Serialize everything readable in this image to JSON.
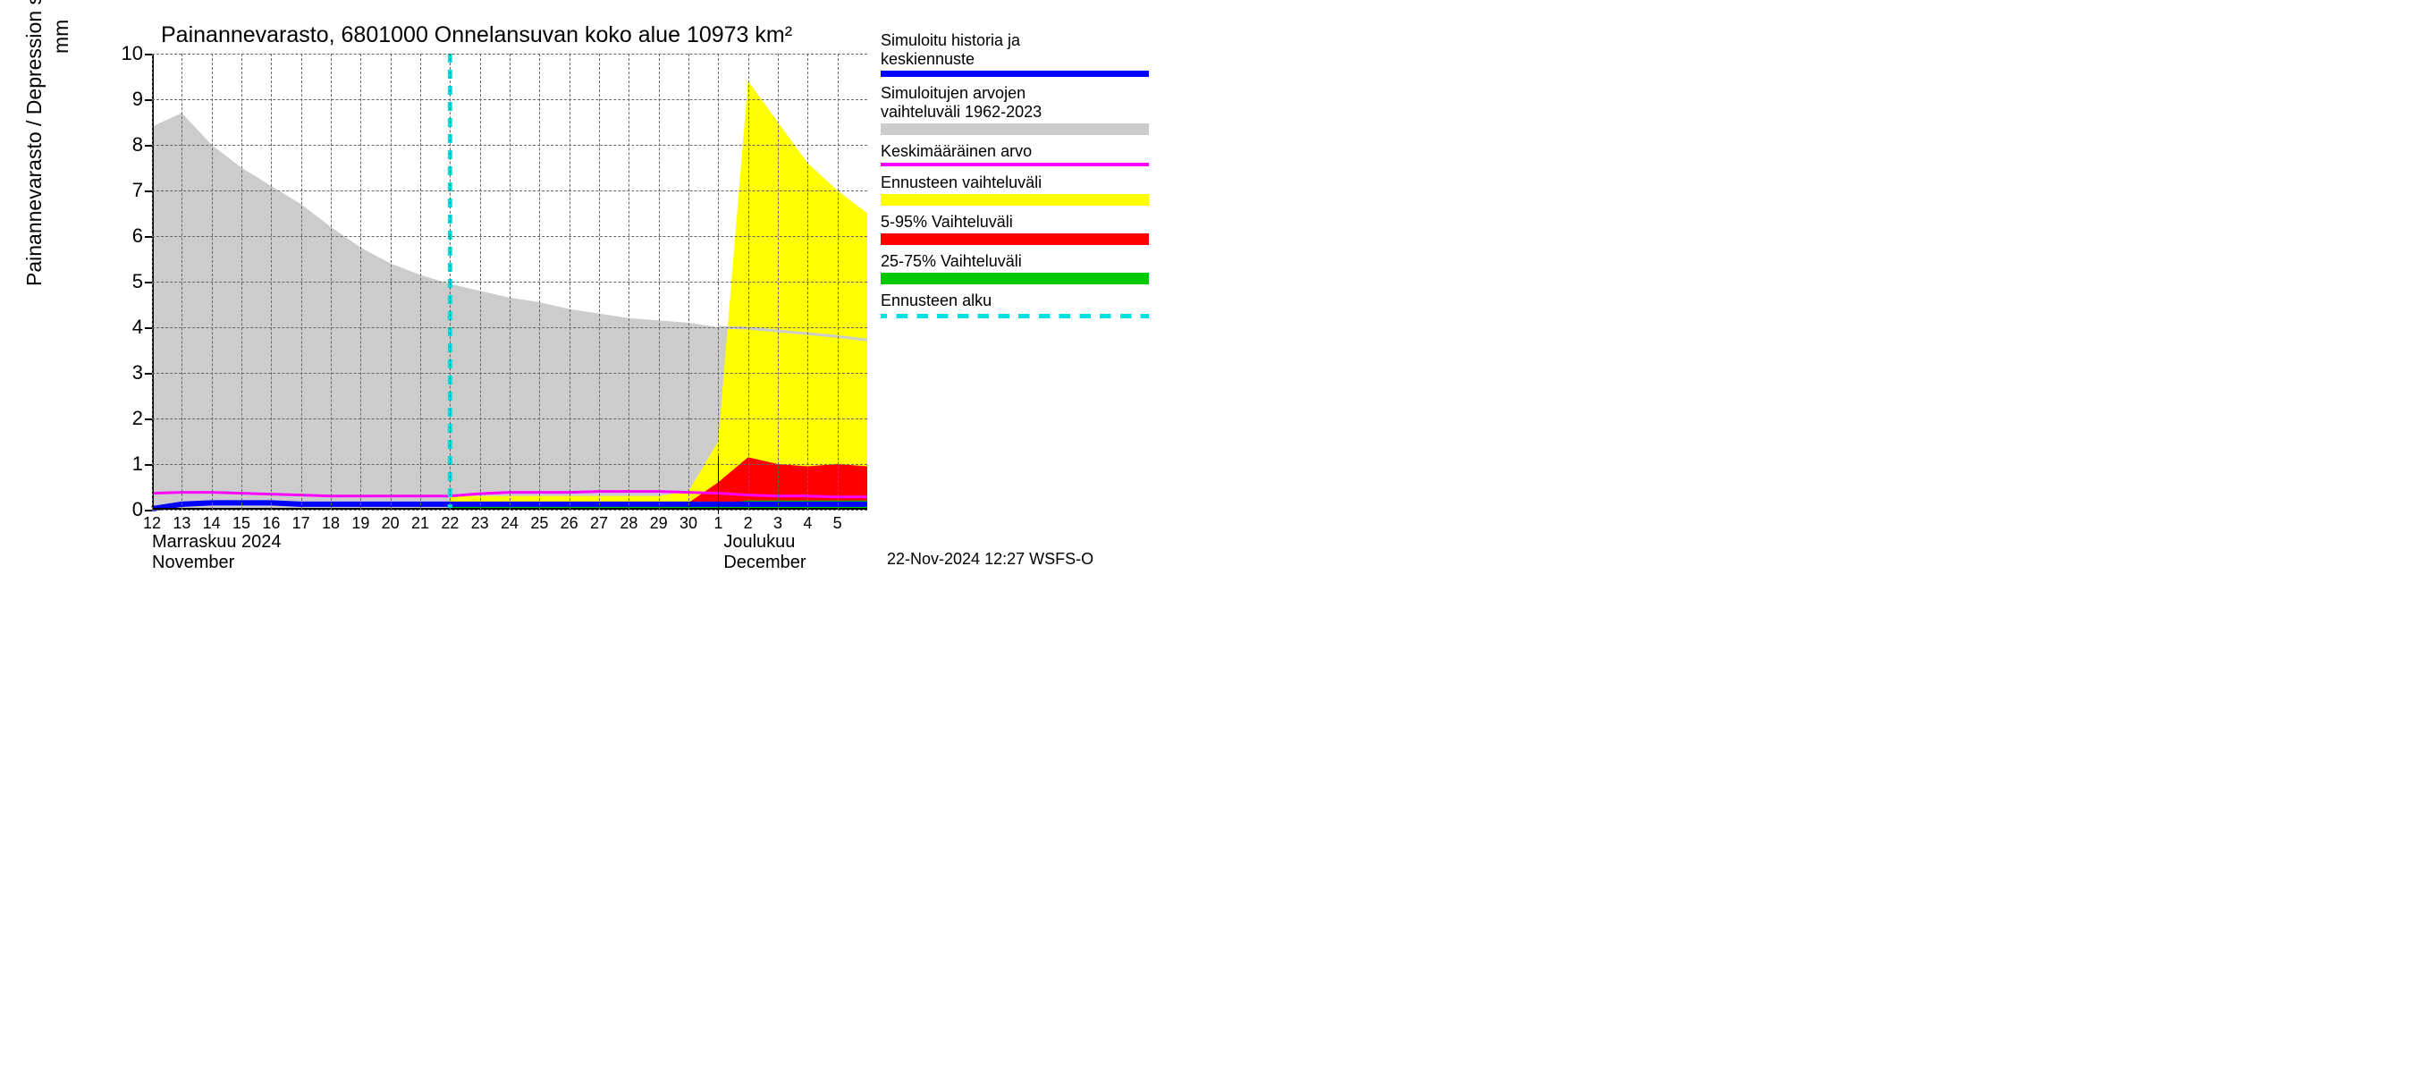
{
  "chart": {
    "title": "Painannevarasto, 6801000 Onnelansuvan koko alue 10973 km²",
    "ylabel": "Painannevarasto / Depression storage",
    "yunit": "mm",
    "title_fontsize": 25,
    "label_fontsize": 23,
    "tick_fontsize_y": 22,
    "tick_fontsize_x": 18,
    "background_color": "#ffffff",
    "grid_color": "#666666",
    "axis_color": "#000000",
    "ylim": [
      0,
      10
    ],
    "yticks": [
      0,
      1,
      2,
      3,
      4,
      5,
      6,
      7,
      8,
      9,
      10
    ],
    "xlim_days": [
      0,
      24
    ],
    "forecast_start_day": 10,
    "x_day_labels": [
      "12",
      "13",
      "14",
      "15",
      "16",
      "17",
      "18",
      "19",
      "20",
      "21",
      "22",
      "23",
      "24",
      "25",
      "26",
      "27",
      "28",
      "29",
      "30",
      "1",
      "2",
      "3",
      "4",
      "5"
    ],
    "x_month1_fi": "Marraskuu 2024",
    "x_month1_en": "November",
    "x_month2_fi": "Joulukuu",
    "x_month2_en": "December",
    "month_sep_day": 19,
    "timestamp": "22-Nov-2024 12:27 WSFS-O",
    "series": {
      "gray_band": {
        "color": "#cccccc",
        "upper": [
          8.4,
          8.7,
          8.0,
          7.5,
          7.1,
          6.7,
          6.2,
          5.75,
          5.4,
          5.15,
          4.95,
          4.8,
          4.65,
          4.55,
          4.4,
          4.3,
          4.2,
          4.15,
          4.1,
          4.0,
          3.98,
          3.92,
          3.86,
          3.8,
          3.72
        ],
        "lower": [
          0,
          0,
          0,
          0,
          0,
          0,
          0,
          0,
          0,
          0,
          0,
          0,
          0,
          0,
          0,
          0,
          0,
          0,
          0,
          0,
          0,
          0,
          0,
          0,
          0
        ]
      },
      "yellow_band": {
        "color": "#ffff00",
        "start_day": 10,
        "upper": [
          0.3,
          0.3,
          0.3,
          0.3,
          0.3,
          0.3,
          0.3,
          0.3,
          0.4,
          1.5,
          9.4,
          8.5,
          7.6,
          7.0,
          6.5
        ],
        "lower": [
          0,
          0,
          0,
          0,
          0,
          0,
          0,
          0,
          0,
          0,
          0,
          0,
          0,
          0,
          0
        ]
      },
      "red_band": {
        "color": "#ff0000",
        "start_day": 10,
        "upper": [
          0.12,
          0.12,
          0.12,
          0.12,
          0.12,
          0.12,
          0.12,
          0.12,
          0.15,
          0.6,
          1.15,
          1.0,
          0.95,
          1.0,
          0.95
        ],
        "lower": [
          0,
          0,
          0,
          0,
          0,
          0,
          0,
          0,
          0,
          0,
          0,
          0,
          0,
          0,
          0
        ]
      },
      "green_band": {
        "color": "#00c800",
        "start_day": 10,
        "upper": [
          0.1,
          0.1,
          0.1,
          0.1,
          0.1,
          0.1,
          0.1,
          0.1,
          0.1,
          0.12,
          0.2,
          0.2,
          0.2,
          0.2,
          0.2
        ],
        "lower": [
          0,
          0,
          0,
          0,
          0,
          0,
          0,
          0,
          0,
          0,
          0,
          0,
          0,
          0,
          0
        ]
      },
      "blue_line": {
        "color": "#0000ff",
        "width": 6,
        "y": [
          0.02,
          0.12,
          0.15,
          0.15,
          0.15,
          0.12,
          0.12,
          0.12,
          0.12,
          0.12,
          0.12,
          0.12,
          0.12,
          0.12,
          0.12,
          0.12,
          0.12,
          0.12,
          0.12,
          0.12,
          0.12,
          0.12,
          0.12,
          0.12,
          0.12
        ]
      },
      "magenta_line": {
        "color": "#ff00ff",
        "width": 3,
        "y": [
          0.36,
          0.38,
          0.38,
          0.36,
          0.34,
          0.32,
          0.3,
          0.3,
          0.3,
          0.3,
          0.3,
          0.35,
          0.38,
          0.38,
          0.38,
          0.4,
          0.4,
          0.4,
          0.38,
          0.36,
          0.32,
          0.3,
          0.3,
          0.28,
          0.28
        ]
      },
      "gray_top_line": {
        "color": "#cccccc",
        "width": 3,
        "start_day": 19,
        "y": [
          4.0,
          3.98,
          3.92,
          3.86,
          3.8,
          3.72
        ]
      },
      "cyan_dash": {
        "color": "#00e0e0",
        "width": 5,
        "x_day": 10
      }
    }
  },
  "legend": {
    "items": [
      {
        "text1": "Simuloitu historia ja",
        "text2": "keskiennuste",
        "type": "line",
        "color": "#0000ff",
        "height": 7
      },
      {
        "text1": "Simuloitujen arvojen",
        "text2": "vaihteluväli 1962-2023",
        "type": "swatch",
        "color": "#cccccc"
      },
      {
        "text1": "Keskimääräinen arvo",
        "text2": "",
        "type": "line",
        "color": "#ff00ff",
        "height": 4
      },
      {
        "text1": "Ennusteen vaihteluväli",
        "text2": "",
        "type": "swatch",
        "color": "#ffff00"
      },
      {
        "text1": "5-95% Vaihteluväli",
        "text2": "",
        "type": "swatch",
        "color": "#ff0000"
      },
      {
        "text1": "25-75% Vaihteluväli",
        "text2": "",
        "type": "swatch",
        "color": "#00c800"
      },
      {
        "text1": "Ennusteen alku",
        "text2": "",
        "type": "dash",
        "color": "#00e0e0"
      }
    ]
  }
}
